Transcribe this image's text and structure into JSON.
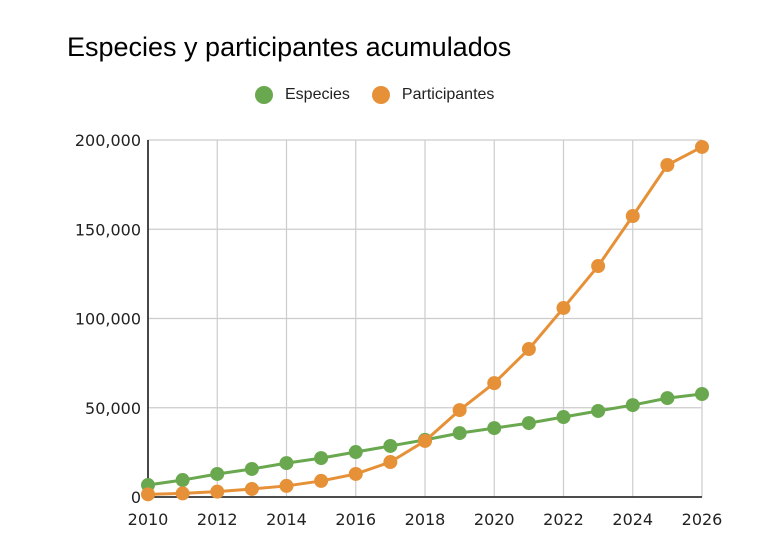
{
  "chart_data": {
    "type": "line",
    "title": "Especies y participantes acumulados",
    "xlabel": "",
    "ylabel": "",
    "x": [
      2010,
      2011,
      2012,
      2013,
      2014,
      2015,
      2016,
      2017,
      2018,
      2019,
      2020,
      2021,
      2022,
      2023,
      2024,
      2025,
      2026
    ],
    "xlim": [
      2010,
      2026
    ],
    "ylim": [
      0,
      200000
    ],
    "x_ticks": [
      "2010",
      "2012",
      "2014",
      "2016",
      "2018",
      "2020",
      "2022",
      "2024",
      "2026"
    ],
    "y_ticks": [
      "0",
      "50,000",
      "100,000",
      "150,000",
      "200,000"
    ],
    "grid": true,
    "legend_position": "top",
    "series": [
      {
        "name": "Especies",
        "color": "#6aa84f",
        "values": [
          6700,
          9500,
          12900,
          15700,
          19000,
          21800,
          25200,
          28600,
          32000,
          35800,
          38600,
          41400,
          44800,
          48200,
          51500,
          55400,
          57700
        ]
      },
      {
        "name": "Participantes",
        "color": "#e69138",
        "values": [
          1500,
          2000,
          3000,
          4500,
          6200,
          9000,
          12900,
          19600,
          31400,
          48700,
          63800,
          82900,
          105900,
          129400,
          157400,
          186000,
          196100
        ]
      }
    ]
  }
}
